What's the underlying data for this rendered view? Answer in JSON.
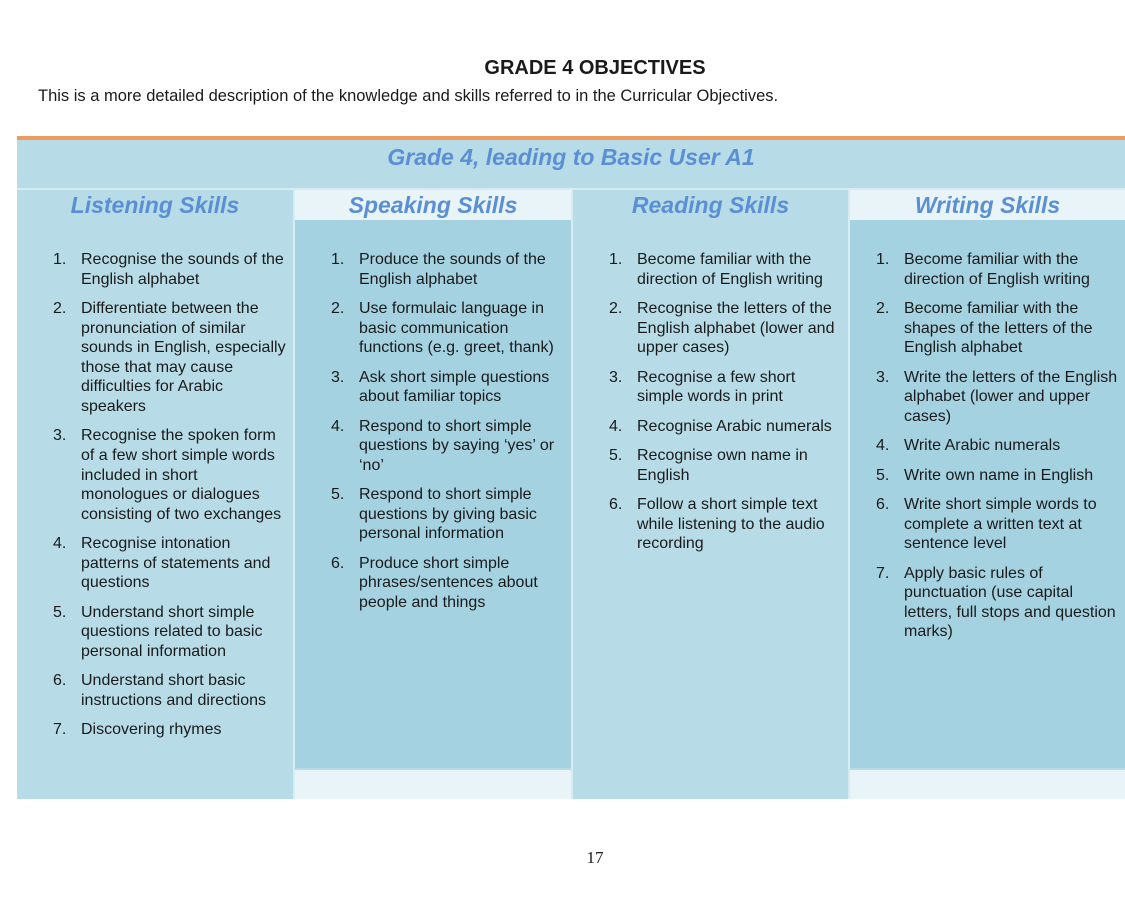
{
  "page_title": "GRADE 4 OBJECTIVES",
  "subtitle": "This is a more detailed description of the knowledge and skills referred to in the Curricular Objectives.",
  "table_title": "Grade 4, leading to Basic User A1",
  "colors": {
    "accent_line": "#ef9b5e",
    "heading": "#5b8fd4",
    "cell_light": "#b7dce7",
    "cell_dark": "#a5d2e1"
  },
  "columns": [
    {
      "heading": "Listening Skills",
      "items": [
        {
          "n": "1.",
          "t": "Recognise the sounds of the English alphabet"
        },
        {
          "n": "2.",
          "t": "Differentiate between the pronunciation of similar sounds in English, especially those that may cause difficulties for Arabic speakers"
        },
        {
          "n": "3.",
          "t": "Recognise the spoken form of a few short simple words included in short monologues or dialogues consisting of two exchanges"
        },
        {
          "n": "4.",
          "t": "Recognise intonation patterns of statements and questions"
        },
        {
          "n": "5.",
          "t": "Understand short simple questions related to basic personal information"
        },
        {
          "n": "6.",
          "t": "Understand short basic instructions and directions"
        },
        {
          "n": "7.",
          "t": "Discovering rhymes"
        }
      ]
    },
    {
      "heading": "Speaking Skills",
      "items": [
        {
          "n": "1.",
          "t": "Produce the sounds of the English alphabet"
        },
        {
          "n": "2.",
          "t": "Use formulaic language in basic communication functions (e.g. greet, thank)"
        },
        {
          "n": "3.",
          "t": "Ask short simple questions about familiar topics"
        },
        {
          "n": "4.",
          "t": "Respond to short simple questions by saying ‘yes’ or ‘no’"
        },
        {
          "n": "5.",
          "t": "Respond to short simple questions by giving basic personal information"
        },
        {
          "n": "6.",
          "t": "Produce short simple phrases/sentences about people and things"
        }
      ]
    },
    {
      "heading": "Reading Skills",
      "items": [
        {
          "n": "1.",
          "t": "Become familiar with the direction of English writing"
        },
        {
          "n": "2.",
          "t": "Recognise the letters of the English alphabet (lower and upper cases)"
        },
        {
          "n": "3.",
          "t": "Recognise a few short simple words in print"
        },
        {
          "n": "4.",
          "t": "Recognise Arabic numerals"
        },
        {
          "n": "5.",
          "t": "Recognise own name in English"
        },
        {
          "n": "6.",
          "t": "Follow a short simple text while listening to the audio recording"
        }
      ]
    },
    {
      "heading": "Writing Skills",
      "items": [
        {
          "n": "1.",
          "t": "Become familiar with the direction of English writing"
        },
        {
          "n": "2.",
          "t": "Become familiar with the shapes of the letters of the English alphabet"
        },
        {
          "n": "3.",
          "t": "Write the letters of the English alphabet (lower and upper cases)"
        },
        {
          "n": "4.",
          "t": "Write Arabic numerals"
        },
        {
          "n": "5.",
          "t": "Write own name in English"
        },
        {
          "n": "6.",
          "t": "Write short simple words to complete a written text at sentence level"
        },
        {
          "n": "7.",
          "t": "Apply basic rules of punctuation (use capital letters, full stops and question marks)"
        }
      ]
    }
  ],
  "page_number": "17"
}
